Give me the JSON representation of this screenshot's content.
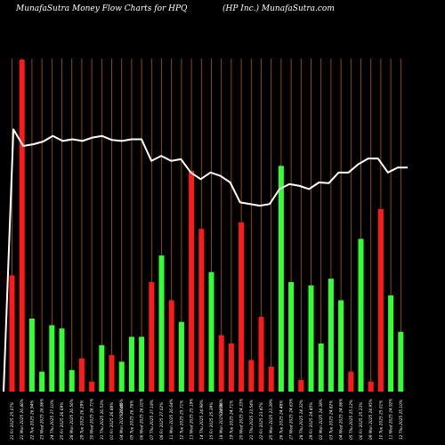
{
  "header": {
    "left_title": "MunafaSutra  Money Flow  Charts for HPQ",
    "right_title": "(HP Inc.) MunafaSutra.com"
  },
  "colors": {
    "background": "#000000",
    "grid": "#b35c00",
    "buy": "#33ff33",
    "sell": "#ff1a1a",
    "line": "#ffffff",
    "text": "#ffffff"
  },
  "chart_data": {
    "type": "bar",
    "title": "MunafaSutra  Money Flow  Charts for HPQ",
    "subtitle": "(HP Inc.) MunafaSutra.com",
    "xlabel": "",
    "ylabel": "",
    "grid": true,
    "ylim": [
      0,
      100
    ],
    "categories": [
      "21 Fri 2025 25.07%",
      "21 Mon 2025 26.46%",
      "22 Tue 2025 26.94%",
      "23 Wed 2025 26.86%",
      "24 Thu 2025 27.10%",
      "25 Fri 2025 26.69%",
      "28 Mon 2025 26.56%",
      "29 Tue 2025 26.29%",
      "30 Wed 2025 26.71%",
      "31 Thu 2025 26.53%",
      "01 Fri 2025 26.88%",
      "04 Mon 2025 26.45%",
      "05 Tue 2025 26.76%",
      "06 Wed 2025 26.01%",
      "07 Thu 2025 27.18%",
      "08 Fri 2025 27.02%",
      "11 Mon 2025 26.64%",
      "12 Tue 2025 25.71%",
      "13 Wed 2025 25.19%",
      "14 Thu 2025 24.98%",
      "15 Fri 2025 25.39%",
      "18 Mon 2025 24.86%",
      "19 Tue 2025 24.71%",
      "20 Wed 2025 24.33%",
      "21 Thu 2025 23.54%",
      "22 Fri 2025 23.47%",
      "25 Mon 2025 23.39%",
      "26 Tue 2025 24.48%",
      "27 Wed 2025 24.63%",
      "28 Thu 2025 24.32%",
      "29 Fri 2025 24.45%",
      "02 Mon 2025 24.38%",
      "03 Tue 2025 24.82%",
      "04 Wed 2025 24.86%",
      "05 Thu 2025 25.12%",
      "06 Fri 2025 25.23%",
      "09 Mon 2025 24.95%",
      "10 Tue 2025 25.01%",
      "11 Wed 2025 24.92%",
      "12 Thu 2025 25.10%"
    ],
    "annotations": [
      "0.04%",
      "0.05%"
    ],
    "bars": [
      {
        "value": 35,
        "color": "sell"
      },
      {
        "value": 100,
        "color": "sell"
      },
      {
        "value": 22,
        "color": "buy"
      },
      {
        "value": 6,
        "color": "buy"
      },
      {
        "value": 20,
        "color": "buy"
      },
      {
        "value": 19,
        "color": "buy"
      },
      {
        "value": 6.5,
        "color": "buy"
      },
      {
        "value": 10,
        "color": "sell"
      },
      {
        "value": 3,
        "color": "sell"
      },
      {
        "value": 14,
        "color": "buy"
      },
      {
        "value": 11,
        "color": "sell"
      },
      {
        "value": 9,
        "color": "buy"
      },
      {
        "value": 16.5,
        "color": "buy"
      },
      {
        "value": 16.5,
        "color": "buy"
      },
      {
        "value": 33,
        "color": "sell"
      },
      {
        "value": 41,
        "color": "buy"
      },
      {
        "value": 27.5,
        "color": "sell"
      },
      {
        "value": 21,
        "color": "buy"
      },
      {
        "value": 66.5,
        "color": "sell"
      },
      {
        "value": 49,
        "color": "sell"
      },
      {
        "value": 36,
        "color": "buy"
      },
      {
        "value": 17,
        "color": "sell"
      },
      {
        "value": 14.5,
        "color": "sell"
      },
      {
        "value": 51,
        "color": "sell"
      },
      {
        "value": 9.5,
        "color": "sell"
      },
      {
        "value": 22.5,
        "color": "sell"
      },
      {
        "value": 7.5,
        "color": "sell"
      },
      {
        "value": 68,
        "color": "buy"
      },
      {
        "value": 33,
        "color": "buy"
      },
      {
        "value": 3.5,
        "color": "sell"
      },
      {
        "value": 32,
        "color": "buy"
      },
      {
        "value": 14.5,
        "color": "buy"
      },
      {
        "value": 34,
        "color": "buy"
      },
      {
        "value": 27.5,
        "color": "buy"
      },
      {
        "value": 6,
        "color": "sell"
      },
      {
        "value": 46,
        "color": "buy"
      },
      {
        "value": 3,
        "color": "sell"
      },
      {
        "value": 55,
        "color": "sell"
      },
      {
        "value": 29,
        "color": "buy"
      },
      {
        "value": 18,
        "color": "buy"
      }
    ],
    "line": [
      0,
      79,
      74,
      74.5,
      75.3,
      77,
      75.5,
      76,
      75.5,
      76.5,
      77,
      75.8,
      75.5,
      76,
      76,
      69.5,
      71,
      69.5,
      70,
      66,
      64,
      66,
      65,
      63,
      57,
      56.5,
      56,
      56.5,
      61,
      62.5,
      62,
      61,
      63,
      62.8,
      66,
      66,
      68.5,
      70.2,
      70.2,
      66,
      67.5,
      67.5
    ]
  }
}
